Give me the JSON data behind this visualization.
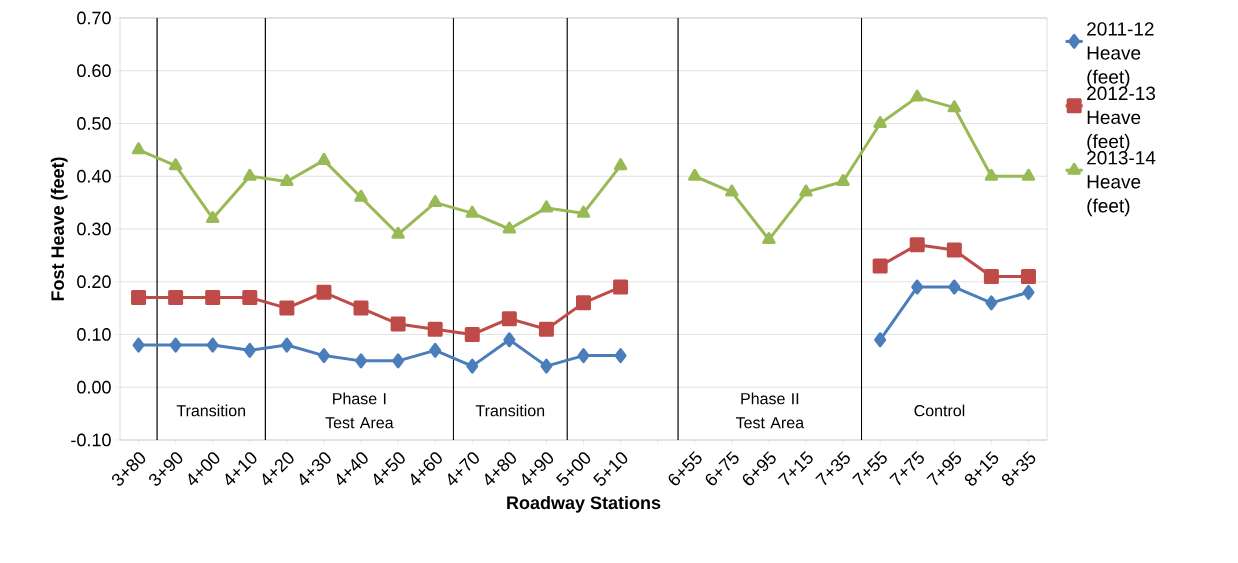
{
  "chart_data": {
    "type": "line",
    "categories": [
      "3+80",
      "3+90",
      "4+00",
      "4+10",
      "4+20",
      "4+30",
      "4+40",
      "4+50",
      "4+60",
      "4+70",
      "4+80",
      "4+90",
      "5+00",
      "5+10",
      null,
      "6+55",
      "6+75",
      "6+95",
      "7+15",
      "7+35",
      "7+55",
      "7+75",
      "7+95",
      "8+15",
      "8+35"
    ],
    "series": [
      {
        "name": "2011-12 Heave (feet)",
        "color": "#4a7ebb",
        "marker": "diamond",
        "values": [
          0.08,
          0.08,
          0.08,
          0.07,
          0.08,
          0.06,
          0.05,
          0.05,
          0.07,
          0.04,
          0.09,
          0.04,
          0.06,
          0.06,
          null,
          null,
          null,
          null,
          null,
          null,
          0.09,
          0.19,
          0.19,
          0.16,
          0.18
        ]
      },
      {
        "name": "2012-13 Heave (feet)",
        "color": "#be4b48",
        "marker": "square",
        "values": [
          0.17,
          0.17,
          0.17,
          0.17,
          0.15,
          0.18,
          0.15,
          0.12,
          0.11,
          0.1,
          0.13,
          0.11,
          0.16,
          0.19,
          null,
          null,
          null,
          null,
          null,
          null,
          0.23,
          0.27,
          0.26,
          0.21,
          0.21
        ]
      },
      {
        "name": "2013-14 Heave (feet)",
        "color": "#98b954",
        "marker": "triangle",
        "values": [
          0.45,
          0.42,
          0.32,
          0.4,
          0.39,
          0.43,
          0.36,
          0.29,
          0.35,
          0.33,
          0.3,
          0.34,
          0.33,
          0.42,
          null,
          0.4,
          0.37,
          0.28,
          0.37,
          0.39,
          0.5,
          0.55,
          0.53,
          0.4,
          0.4
        ]
      }
    ],
    "xlabel": "Roadway Stations",
    "ylabel": "Fost Heave (feet)",
    "ylim": [
      -0.1,
      0.7
    ],
    "yticks": [
      {
        "value": -0.1,
        "label": "-0.10"
      },
      {
        "value": 0,
        "label": "0.00"
      },
      {
        "value": 0.1,
        "label": "0.10"
      },
      {
        "value": 0.2,
        "label": "0.20"
      },
      {
        "value": 0.3,
        "label": "0.30"
      },
      {
        "value": 0.4,
        "label": "0.40"
      },
      {
        "value": 0.5,
        "label": "0.50"
      },
      {
        "value": 0.6,
        "label": "0.60"
      },
      {
        "value": 0.7,
        "label": "0.70"
      }
    ],
    "grid": "y",
    "legend": "right",
    "annotations": [
      "Transition",
      "Phase I Test Area",
      "Transition",
      "Phase II Test Area",
      "Control"
    ]
  }
}
